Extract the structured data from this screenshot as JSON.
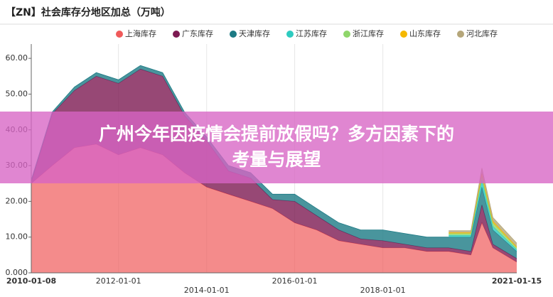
{
  "chart_data": {
    "type": "stacked-area",
    "title": "【ZN】社会库存分地区加总（万吨）",
    "x": [
      "2010-01-08",
      "2010-07-01",
      "2011-01-01",
      "2011-07-01",
      "2012-01-01",
      "2012-07-01",
      "2013-01-01",
      "2013-07-01",
      "2014-01-01",
      "2014-07-01",
      "2015-01-01",
      "2015-07-01",
      "2016-01-01",
      "2016-07-01",
      "2017-01-01",
      "2017-07-01",
      "2018-01-01",
      "2018-07-01",
      "2019-01-01",
      "2019-07-01",
      "2020-01-01",
      "2020-04-01",
      "2020-07-01",
      "2021-01-15"
    ],
    "series": [
      {
        "name": "上海库存",
        "color": "#f05a5a",
        "values": [
          25,
          30,
          35,
          36,
          33,
          35,
          33,
          28,
          24,
          22,
          20,
          18,
          14,
          12,
          9,
          8,
          7,
          7,
          6,
          6,
          5,
          14,
          7,
          3
        ]
      },
      {
        "name": "广东库存",
        "color": "#7d1a52",
        "values": [
          0.5,
          14.5,
          16,
          19,
          20,
          22,
          22,
          16,
          13,
          6.5,
          6.5,
          2.5,
          6,
          4,
          3,
          1.5,
          2,
          1,
          1,
          1,
          1,
          5,
          1,
          1
        ]
      },
      {
        "name": "天津库存",
        "color": "#1c7a84",
        "values": [
          0.5,
          0.5,
          1,
          1,
          1,
          1,
          1,
          1,
          1,
          1.5,
          1.5,
          1.5,
          2,
          2,
          2,
          2.5,
          3,
          3,
          3,
          3,
          4,
          5,
          4,
          2
        ]
      },
      {
        "name": "江苏库存",
        "color": "#2ecbc0",
        "values": [
          null,
          null,
          null,
          null,
          null,
          null,
          null,
          null,
          null,
          null,
          null,
          null,
          null,
          null,
          null,
          null,
          null,
          null,
          null,
          0.5,
          0.5,
          2,
          1,
          0.5
        ]
      },
      {
        "name": "浙江库存",
        "color": "#8fd66b",
        "values": [
          null,
          null,
          null,
          null,
          null,
          null,
          null,
          null,
          null,
          null,
          null,
          null,
          null,
          null,
          null,
          null,
          null,
          null,
          null,
          0.5,
          0.5,
          1,
          1,
          0.5
        ]
      },
      {
        "name": "山东库存",
        "color": "#f5b800",
        "values": [
          null,
          null,
          null,
          null,
          null,
          null,
          null,
          null,
          null,
          null,
          null,
          null,
          null,
          null,
          null,
          null,
          null,
          null,
          null,
          0.3,
          0.3,
          0.8,
          0.5,
          0.3
        ]
      },
      {
        "name": "河北库存",
        "color": "#b5a67a",
        "values": [
          null,
          null,
          null,
          null,
          null,
          null,
          null,
          null,
          null,
          null,
          null,
          null,
          null,
          null,
          null,
          null,
          null,
          null,
          null,
          0.5,
          0.5,
          1.5,
          1,
          1
        ]
      }
    ],
    "xlim": [
      "2010-01-08",
      "2021-01-15"
    ],
    "xticks": [
      "2010-01-08",
      "2012-01-01",
      "2014-01-01",
      "2016-01-01",
      "2018-01-01",
      "2021-01-15"
    ],
    "ylim": [
      0,
      64
    ],
    "yticks": [
      {
        "value": 0,
        "label": "0.000"
      },
      {
        "value": 10,
        "label": "10.00"
      },
      {
        "value": 20,
        "label": "20.00"
      },
      {
        "value": 30,
        "label": "30.00"
      },
      {
        "value": 40,
        "label": "40.00"
      },
      {
        "value": 50,
        "label": "50.00"
      },
      {
        "value": 60,
        "label": "60.00"
      }
    ],
    "grid": "x"
  },
  "headline": [
    "广州今年因疫情会提前放假吗？多方因素下的",
    "考量与展望"
  ]
}
